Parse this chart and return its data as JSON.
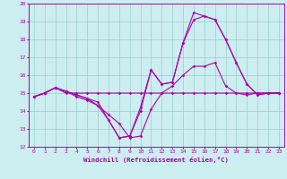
{
  "xlabel": "Windchill (Refroidissement éolien,°C)",
  "xlim": [
    -0.5,
    23.5
  ],
  "ylim": [
    12,
    20
  ],
  "yticks": [
    12,
    13,
    14,
    15,
    16,
    17,
    18,
    19,
    20
  ],
  "xticks": [
    0,
    1,
    2,
    3,
    4,
    5,
    6,
    7,
    8,
    9,
    10,
    11,
    12,
    13,
    14,
    15,
    16,
    17,
    18,
    19,
    20,
    21,
    22,
    23
  ],
  "bg_color": "#cceef0",
  "line_color": "#aa00aa",
  "grid_color": "#99cccc",
  "line1_x": [
    0,
    1,
    2,
    3,
    4,
    5,
    6,
    7,
    8,
    9,
    10,
    11,
    12,
    13,
    14,
    15,
    16,
    17,
    18,
    19,
    20,
    21,
    22,
    23
  ],
  "line1_y": [
    14.8,
    15.0,
    15.3,
    15.0,
    15.0,
    15.0,
    15.0,
    15.0,
    15.0,
    15.0,
    15.0,
    15.0,
    15.0,
    15.0,
    15.0,
    15.0,
    15.0,
    15.0,
    15.0,
    15.0,
    15.0,
    15.0,
    15.0,
    15.0
  ],
  "line2_x": [
    0,
    1,
    2,
    3,
    4,
    5,
    6,
    7,
    8,
    9,
    10,
    11,
    12,
    13,
    14,
    15,
    16,
    17,
    18,
    19,
    20,
    21,
    22,
    23
  ],
  "line2_y": [
    14.8,
    15.0,
    15.3,
    15.1,
    14.8,
    14.6,
    14.3,
    13.8,
    13.3,
    12.5,
    12.6,
    14.1,
    15.0,
    15.4,
    16.0,
    16.5,
    16.5,
    16.7,
    15.4,
    15.0,
    14.9,
    15.0,
    15.0,
    15.0
  ],
  "line3_x": [
    0,
    1,
    2,
    3,
    4,
    5,
    6,
    7,
    8,
    9,
    10,
    11,
    12,
    13,
    14,
    15,
    16,
    17,
    18,
    19,
    20,
    21,
    22,
    23
  ],
  "line3_y": [
    14.8,
    15.0,
    15.3,
    15.1,
    14.9,
    14.7,
    14.3,
    13.5,
    12.5,
    12.6,
    14.2,
    16.3,
    15.5,
    15.6,
    17.8,
    19.1,
    19.3,
    19.1,
    18.0,
    16.7,
    15.5,
    14.9,
    15.0,
    15.0
  ],
  "line4_x": [
    0,
    1,
    2,
    3,
    4,
    5,
    6,
    7,
    8,
    9,
    10,
    11,
    12,
    13,
    14,
    15,
    16,
    17,
    18,
    19,
    20,
    21,
    22,
    23
  ],
  "line4_y": [
    14.8,
    15.0,
    15.3,
    15.1,
    14.9,
    14.7,
    14.5,
    13.5,
    12.5,
    12.6,
    14.0,
    16.3,
    15.5,
    15.6,
    17.8,
    19.5,
    19.3,
    19.1,
    18.0,
    16.7,
    15.5,
    14.9,
    15.0,
    15.0
  ]
}
